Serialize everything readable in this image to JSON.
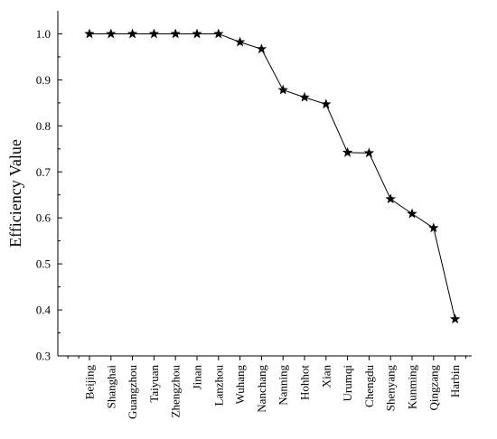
{
  "chart_data": {
    "type": "line",
    "title": "",
    "xlabel": "",
    "ylabel": "Efficiency Value",
    "ylim": [
      0.3,
      1.05
    ],
    "yticks": [
      0.3,
      0.4,
      0.5,
      0.6,
      0.7,
      0.8,
      0.9,
      1.0
    ],
    "ytick_labels": [
      "0.3",
      "0.4",
      "0.5",
      "0.6",
      "0.7",
      "0.8",
      "0.9",
      "1.0"
    ],
    "grid": false,
    "marker": "star",
    "line_color": "#000000",
    "categories": [
      "Beijing",
      "Shanghai",
      "Guangzhou",
      "Taiyuan",
      "Zhengzhou",
      "Jinan",
      "Lanzhou",
      "Wuhang",
      "Nanchang",
      "Nanning",
      "Hohhot",
      "Xian",
      "Urumqi",
      "Chengdu",
      "Shenyang",
      "Kunming",
      "Qingzang",
      "Harbin"
    ],
    "series": [
      {
        "values": [
          1.0,
          1.0,
          1.0,
          1.0,
          1.0,
          1.0,
          1.0,
          0.982,
          0.967,
          0.878,
          0.862,
          0.847,
          0.742,
          0.741,
          0.641,
          0.609,
          0.578,
          0.38
        ]
      }
    ]
  }
}
